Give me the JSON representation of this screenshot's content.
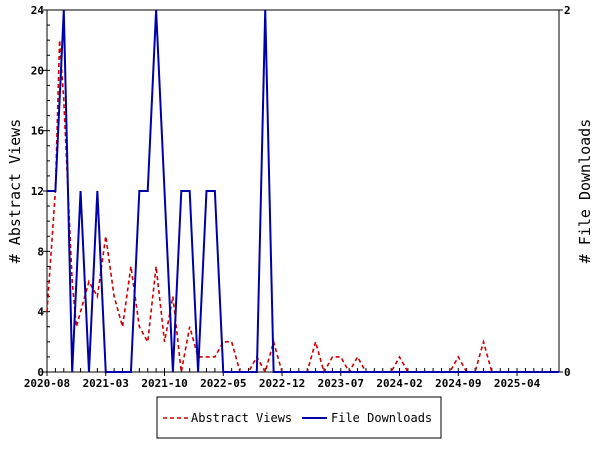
{
  "chart_data": {
    "type": "line",
    "title": "",
    "xlabel": "",
    "ylabel": "# Abstract Views",
    "y2label": "# File Downloads",
    "x_tick_labels": [
      "2020-08",
      "2021-03",
      "2021-10",
      "2022-05",
      "2022-12",
      "2023-07",
      "2024-02",
      "2024-09",
      "2025-04"
    ],
    "x_tick_month_index": [
      0,
      7,
      14,
      21,
      28,
      35,
      42,
      49,
      56
    ],
    "x_range_months": [
      0,
      61
    ],
    "ylim": [
      0,
      24
    ],
    "y_ticks": [
      0,
      4,
      8,
      12,
      16,
      20,
      24
    ],
    "y2lim": [
      0,
      2
    ],
    "y2_ticks": [
      0,
      2
    ],
    "grid": false,
    "legend_position": "bottom-center",
    "colors": {
      "views": "#cc0000",
      "downloads": "#0000aa"
    },
    "series": [
      {
        "name": "Abstract Views",
        "axis": "left",
        "style": "dashed",
        "points": [
          [
            0,
            4
          ],
          [
            1,
            12
          ],
          [
            1.5,
            22
          ],
          [
            2,
            18
          ],
          [
            2.5,
            12
          ],
          [
            3,
            6
          ],
          [
            3.5,
            3
          ],
          [
            4,
            4
          ],
          [
            5,
            6
          ],
          [
            6,
            5
          ],
          [
            7,
            9
          ],
          [
            8,
            5
          ],
          [
            9,
            3
          ],
          [
            10,
            7
          ],
          [
            11,
            3
          ],
          [
            12,
            2
          ],
          [
            13,
            7
          ],
          [
            14,
            2
          ],
          [
            15,
            5
          ],
          [
            16,
            0
          ],
          [
            17,
            3
          ],
          [
            18,
            1
          ],
          [
            19,
            1
          ],
          [
            20,
            1
          ],
          [
            21,
            2
          ],
          [
            22,
            2
          ],
          [
            23,
            0
          ],
          [
            24,
            0
          ],
          [
            25,
            1
          ],
          [
            26,
            0
          ],
          [
            27,
            2
          ],
          [
            28,
            0
          ],
          [
            29,
            0
          ],
          [
            30,
            0
          ],
          [
            31,
            0
          ],
          [
            32,
            2
          ],
          [
            33,
            0
          ],
          [
            34,
            1
          ],
          [
            35,
            1
          ],
          [
            36,
            0
          ],
          [
            37,
            1
          ],
          [
            38,
            0
          ],
          [
            39,
            0
          ],
          [
            40,
            0
          ],
          [
            41,
            0
          ],
          [
            42,
            1
          ],
          [
            43,
            0
          ],
          [
            44,
            0
          ],
          [
            45,
            0
          ],
          [
            46,
            0
          ],
          [
            47,
            0
          ],
          [
            48,
            0
          ],
          [
            49,
            1
          ],
          [
            50,
            0
          ],
          [
            51,
            0
          ],
          [
            52,
            2
          ],
          [
            53,
            0
          ],
          [
            54,
            0
          ],
          [
            55,
            0
          ],
          [
            56,
            0
          ],
          [
            57,
            0
          ],
          [
            58,
            0
          ],
          [
            59,
            0
          ],
          [
            60,
            0
          ],
          [
            61,
            0
          ]
        ]
      },
      {
        "name": "File Downloads",
        "axis": "right",
        "style": "solid",
        "points": [
          [
            0,
            1
          ],
          [
            1,
            1
          ],
          [
            2,
            2
          ],
          [
            3,
            0
          ],
          [
            4,
            1
          ],
          [
            5,
            0
          ],
          [
            6,
            1
          ],
          [
            7,
            0
          ],
          [
            8,
            0
          ],
          [
            9,
            0
          ],
          [
            10,
            0
          ],
          [
            11,
            1
          ],
          [
            12,
            1
          ],
          [
            13,
            2
          ],
          [
            14,
            1
          ],
          [
            15,
            0
          ],
          [
            16,
            1
          ],
          [
            17,
            1
          ],
          [
            18,
            0
          ],
          [
            19,
            1
          ],
          [
            20,
            1
          ],
          [
            21,
            0
          ],
          [
            22,
            0
          ],
          [
            23,
            0
          ],
          [
            24,
            0
          ],
          [
            25,
            0
          ],
          [
            26,
            2
          ],
          [
            27,
            0
          ],
          [
            28,
            0
          ],
          [
            29,
            0
          ],
          [
            30,
            0
          ],
          [
            31,
            0
          ],
          [
            32,
            0
          ],
          [
            33,
            0
          ],
          [
            34,
            0
          ],
          [
            35,
            0
          ],
          [
            36,
            0
          ],
          [
            37,
            0
          ],
          [
            38,
            0
          ],
          [
            39,
            0
          ],
          [
            40,
            0
          ],
          [
            41,
            0
          ],
          [
            42,
            0
          ],
          [
            43,
            0
          ],
          [
            44,
            0
          ],
          [
            45,
            0
          ],
          [
            46,
            0
          ],
          [
            47,
            0
          ],
          [
            48,
            0
          ],
          [
            49,
            0
          ],
          [
            50,
            0
          ],
          [
            51,
            0
          ],
          [
            52,
            0
          ],
          [
            53,
            0
          ],
          [
            54,
            0
          ],
          [
            55,
            0
          ],
          [
            56,
            0
          ],
          [
            57,
            0
          ],
          [
            58,
            0
          ],
          [
            59,
            0
          ],
          [
            60,
            0
          ],
          [
            61,
            0
          ]
        ]
      }
    ]
  }
}
